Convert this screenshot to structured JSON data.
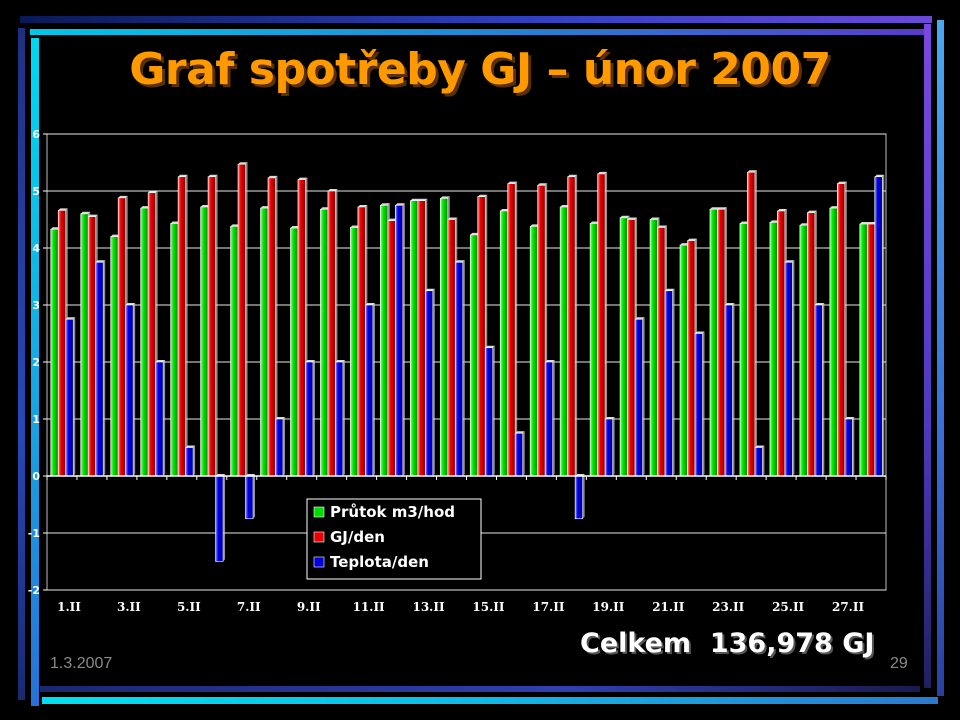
{
  "slide": {
    "footer_date": "1.3.2007",
    "page_number": "29",
    "total_label": "Celkem  136,978 GJ"
  },
  "colors": {
    "background": "#000000",
    "title": "#ff9900",
    "series_flow": "#00dd00",
    "series_gj": "#ee0000",
    "series_temp": "#0000dd"
  },
  "chart_data": {
    "type": "bar",
    "title": "Graf spotřeby GJ – únor 2007",
    "ylim": [
      -2,
      6
    ],
    "yticks": [
      6,
      5,
      4,
      3,
      2,
      1,
      0,
      -1,
      -2
    ],
    "grid": true,
    "legend_position": "bottom-center inside plot",
    "categories": [
      "1.II",
      "2.II",
      "3.II",
      "4.II",
      "5.II",
      "6.II",
      "7.II",
      "8.II",
      "9.II",
      "10.II",
      "11.II",
      "12.II",
      "13.II",
      "14.II",
      "15.II",
      "16.II",
      "17.II",
      "18.II",
      "19.II",
      "20.II",
      "21.II",
      "22.II",
      "23.II",
      "24.II",
      "25.II",
      "26.II",
      "27.II",
      "28.II"
    ],
    "xtick_labels": [
      "1.II",
      "3.II",
      "5.II",
      "7.II",
      "9.II",
      "11.II",
      "13.II",
      "15.II",
      "17.II",
      "19.II",
      "21.II",
      "23.II",
      "25.II",
      "27.II"
    ],
    "series": [
      {
        "name": "Průtok m3/hod",
        "color": "#00dd00",
        "values": [
          4.33,
          4.6,
          4.2,
          4.7,
          4.43,
          4.72,
          4.38,
          4.7,
          4.35,
          4.68,
          4.36,
          4.75,
          4.83,
          4.87,
          4.23,
          4.65,
          4.38,
          4.72,
          4.43,
          4.53,
          4.5,
          4.05,
          4.68,
          4.43,
          4.45,
          4.4,
          4.7,
          4.42
        ]
      },
      {
        "name": "GJ/den",
        "color": "#ee0000",
        "values": [
          4.66,
          4.55,
          4.88,
          4.97,
          5.25,
          5.25,
          5.47,
          5.23,
          5.2,
          5.0,
          4.72,
          4.48,
          4.83,
          4.5,
          4.9,
          5.13,
          5.1,
          5.25,
          5.3,
          4.5,
          4.36,
          4.13,
          4.68,
          5.33,
          4.65,
          4.62,
          5.13,
          4.42
        ]
      },
      {
        "name": "Teplota/den",
        "color": "#0000dd",
        "values": [
          2.75,
          3.75,
          3.0,
          2.0,
          0.5,
          -1.5,
          -0.75,
          1.0,
          2.0,
          2.0,
          3.0,
          4.75,
          3.25,
          3.75,
          2.25,
          0.75,
          2.0,
          -0.75,
          1.0,
          2.75,
          3.25,
          2.5,
          3.0,
          0.5,
          3.75,
          3.0,
          1.0,
          5.25
        ]
      }
    ]
  }
}
